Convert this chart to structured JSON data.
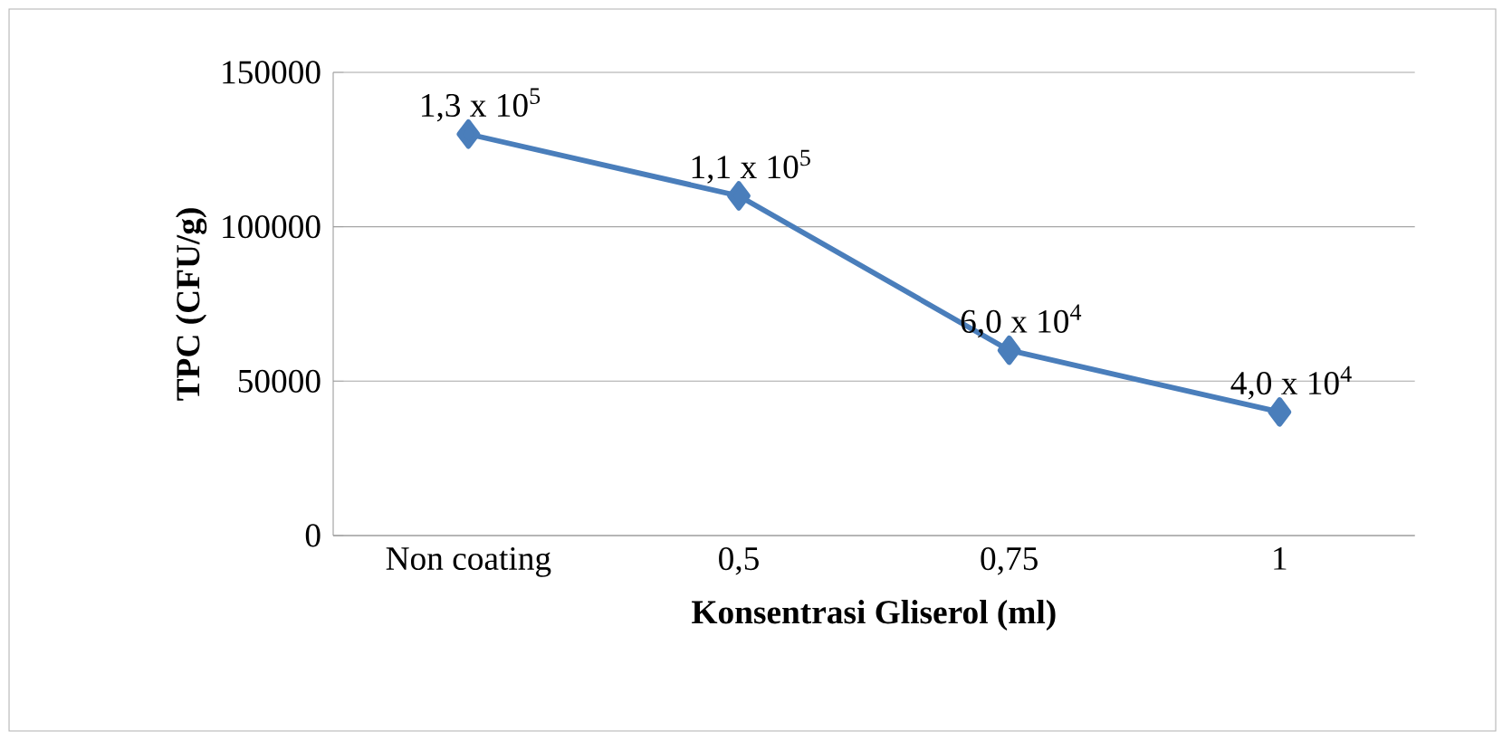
{
  "chart_data": {
    "type": "line",
    "xlabel": "Konsentrasi Gliserol (ml)",
    "ylabel": "TPC (CFU/g)",
    "categories": [
      "Non coating",
      "0,5",
      "0,75",
      "1"
    ],
    "values": [
      130000,
      110000,
      60000,
      40000
    ],
    "annotations": [
      {
        "text": "1,3 x 10$^{5}$",
        "x": "Non coating",
        "y": 130000
      },
      {
        "text": "1,1 x 10$^{5}$",
        "x": "0,5",
        "y": 110000
      },
      {
        "text": "6,0 x 10$^{4}$",
        "x": "0,75",
        "y": 60000
      },
      {
        "text": "4,0 x 10$^{4}$",
        "x": "1",
        "y": 40000
      }
    ],
    "color": "#4a7ebb",
    "marker": "diamond",
    "line_style": "solid",
    "ylim": [
      0,
      150000
    ],
    "yticks": [
      0,
      50000,
      100000,
      150000
    ],
    "grid": "y"
  }
}
